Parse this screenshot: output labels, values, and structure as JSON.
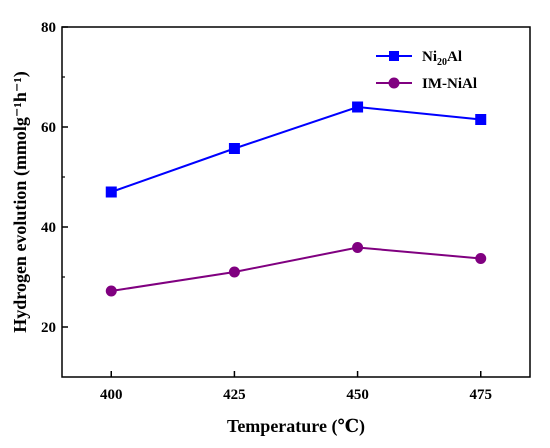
{
  "chart_data": {
    "type": "line",
    "xlabel": "Temperature (℃)",
    "ylabel": "Hydrogen evolution (mmolg⁻¹h⁻¹)",
    "x": [
      400,
      425,
      450,
      475
    ],
    "x_ticks": [
      "400",
      "425",
      "450",
      "475"
    ],
    "y_ticks": [
      "20",
      "40",
      "60",
      "80"
    ],
    "ylim": [
      10,
      80
    ],
    "grid": false,
    "legend_position": "top-right",
    "series": [
      {
        "name": "Ni20Al",
        "name_main": "Ni",
        "name_sub": "20",
        "name_tail": "Al",
        "color": "#0000ff",
        "marker": "square",
        "values": [
          47.0,
          55.7,
          64.0,
          61.5
        ]
      },
      {
        "name": "IM-NiAl",
        "color": "#800080",
        "marker": "circle",
        "values": [
          27.2,
          31.0,
          35.9,
          33.7
        ]
      }
    ]
  }
}
